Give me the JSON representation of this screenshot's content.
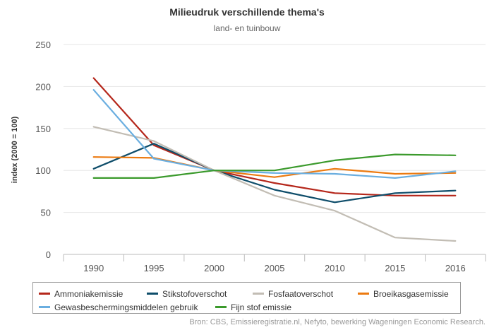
{
  "chart_data": {
    "type": "line",
    "title": "Milieudruk verschillende thema's",
    "subtitle": "land- en tuinbouw",
    "xlabel": "",
    "ylabel": "index (2000 = 100)",
    "x": [
      "1990",
      "1995",
      "2000",
      "2005",
      "2010",
      "2015",
      "2016"
    ],
    "ylim": [
      0,
      250
    ],
    "yticks": [
      "0",
      "50",
      "100",
      "150",
      "200",
      "250"
    ],
    "grid": true,
    "legend_position": "bottom",
    "series": [
      {
        "name": "Ammoniakemissie",
        "color": "#b5271b",
        "values": [
          210,
          130,
          100,
          85,
          73,
          70,
          70
        ]
      },
      {
        "name": "Stikstofoverschot",
        "color": "#0e4d6a",
        "values": [
          102,
          132,
          100,
          77,
          62,
          73,
          76
        ]
      },
      {
        "name": "Fosfaatoverschot",
        "color": "#c2bdb4",
        "values": [
          152,
          135,
          100,
          70,
          52,
          20,
          16
        ]
      },
      {
        "name": "Broeikasgasemissie",
        "color": "#ec7a10",
        "values": [
          116,
          115,
          100,
          92,
          102,
          96,
          97
        ]
      },
      {
        "name": "Gewasbeschermingsmiddelen gebruik",
        "color": "#6aaee0",
        "values": [
          196,
          114,
          100,
          97,
          96,
          91,
          99
        ]
      },
      {
        "name": "Fijn stof emissie",
        "color": "#3b9a2c",
        "values": [
          91,
          91,
          100,
          100,
          112,
          119,
          118
        ]
      }
    ]
  },
  "source": "Bron: CBS, Emissieregistratie.nl, Nefyto, bewerking Wageningen Economic Research."
}
